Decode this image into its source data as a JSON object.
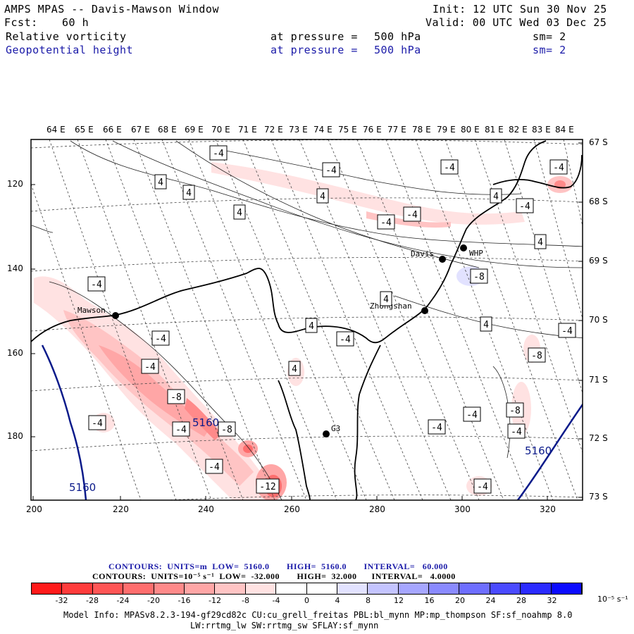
{
  "header": {
    "title": "AMPS MPAS -- Davis-Mawson Window",
    "init": "Init: 12 UTC Sun 30 Nov 25",
    "fcst_label": "Fcst:",
    "fcst_value": "60 h",
    "valid": "Valid: 00 UTC Wed 03 Dec 25",
    "field1": {
      "name": "Relative vorticity",
      "pressure_label": "at pressure =",
      "pressure_value": "500 hPa",
      "sm": "sm= 2"
    },
    "field2": {
      "name": "Geopotential height",
      "pressure_label": "at pressure =",
      "pressure_value": "500 hPa",
      "sm": "sm= 2"
    }
  },
  "map": {
    "top_lon_labels": [
      "64 E",
      "65 E",
      "66 E",
      "67 E",
      "68 E",
      "69 E",
      "70 E",
      "71 E",
      "72 E",
      "73 E",
      "74 E",
      "75 E",
      "76 E",
      "77 E",
      "78 E",
      "79 E",
      "80 E",
      "81 E",
      "82 E",
      "83 E",
      "84 E"
    ],
    "right_lat_labels": [
      "67 S",
      "68 S",
      "69 S",
      "70 S",
      "71 S",
      "72 S",
      "73 S"
    ],
    "left_y_labels": [
      "120",
      "140",
      "160",
      "180"
    ],
    "bottom_x_labels": [
      "200",
      "220",
      "240",
      "260",
      "280",
      "300",
      "320"
    ],
    "stations": [
      {
        "name": "Mawson"
      },
      {
        "name": "Davis"
      },
      {
        "name": "WHP"
      },
      {
        "name": "Zhongshan"
      },
      {
        "name": "G3"
      }
    ],
    "contour_labels": [
      "-4",
      "-4",
      "-4",
      "4",
      "4",
      "4",
      "-4",
      "-4",
      "4",
      "-4",
      "4",
      "-4",
      "-4",
      "4",
      "-8",
      "4",
      "-4",
      "-4",
      "4",
      "4",
      "-8",
      "-4",
      "4",
      "-4",
      "-8",
      "-4",
      "-8",
      "-4",
      "-8",
      "-4",
      "-4",
      "-4",
      "-12",
      "-4",
      "-4"
    ],
    "height_labels": [
      "5160",
      "5160",
      "5160"
    ]
  },
  "footer": {
    "line1": "CONTOURS:  UNITS=m  LOW=  5160.0       HIGH=  5160.0       INTERVAL=   60.000",
    "line2": "CONTOURS:  UNITS=10⁻⁵ s⁻¹  LOW=  -32.000       HIGH=  32.000      INTERVAL=   4.0000",
    "colorbar_labels": [
      "-32",
      "-28",
      "-24",
      "-20",
      "-16",
      "-12",
      "-8",
      "-4",
      "0",
      "4",
      "8",
      "12",
      "16",
      "20",
      "24",
      "28",
      "32"
    ],
    "colorbar_unit": "10⁻⁵ s⁻¹",
    "model_info": "Model Info: MPASv8.2.3-194-gf29cd82c CU:cu_grell_freitas PBL:bl_mynn MP:mp_thompson SF:sf_noahmp 8.0",
    "model_info2": "LW:rrtmg_lw SW:rrtmg_sw SFLAY:sf_mynn"
  },
  "colors": {
    "colorbar": [
      "#ff1a1a",
      "#ff3b3b",
      "#ff5555",
      "#ff6e6e",
      "#ff8a8a",
      "#ffa6a6",
      "#ffc4c4",
      "#ffe2e2",
      "#ffffff",
      "#ffffff",
      "#e2e2ff",
      "#c4c4ff",
      "#a6a6ff",
      "#8a8aff",
      "#6e6eff",
      "#4a4aff",
      "#1a1aff"
    ],
    "height_contour": "#0a1a8a"
  }
}
